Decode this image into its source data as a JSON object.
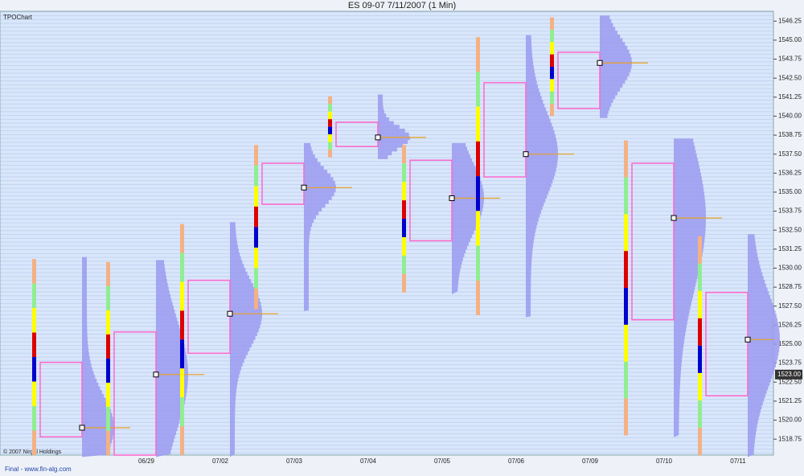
{
  "chart_data": {
    "type": "tpo",
    "title": "ES 09-07  7/11/2007  (1 Min)",
    "panel_label": "TPOChart",
    "copyright": "© 2007 Nirgal Holdings",
    "footer": "Final - www.fin-alg.com",
    "ylim": [
      1517.7,
      1546.9
    ],
    "yticks": [
      {
        "value": 1518.75,
        "label": "1518.75"
      },
      {
        "value": 1520,
        "label": "1520.00"
      },
      {
        "value": 1521.25,
        "label": "1521.25"
      },
      {
        "value": 1522.5,
        "label": "1522.50"
      },
      {
        "value": 1523.75,
        "label": "1523.75"
      },
      {
        "value": 1525,
        "label": "1525.00"
      },
      {
        "value": 1526.25,
        "label": "1526.25"
      },
      {
        "value": 1527.5,
        "label": "1527.50"
      },
      {
        "value": 1528.75,
        "label": "1528.75"
      },
      {
        "value": 1530,
        "label": "1530.00"
      },
      {
        "value": 1531.25,
        "label": "1531.25"
      },
      {
        "value": 1532.5,
        "label": "1532.50"
      },
      {
        "value": 1533.75,
        "label": "1533.75"
      },
      {
        "value": 1535,
        "label": "1535.00"
      },
      {
        "value": 1536.25,
        "label": "1536.25"
      },
      {
        "value": 1537.5,
        "label": "1537.50"
      },
      {
        "value": 1538.75,
        "label": "1538.75"
      },
      {
        "value": 1540,
        "label": "1540.00"
      },
      {
        "value": 1541.25,
        "label": "1541.25"
      },
      {
        "value": 1542.5,
        "label": "1542.50"
      },
      {
        "value": 1543.75,
        "label": "1543.75"
      },
      {
        "value": 1545,
        "label": "1545.00"
      },
      {
        "value": 1546.25,
        "label": "1546.25"
      }
    ],
    "current_price": {
      "value": 1523,
      "label": "1523.00"
    },
    "period_colors": [
      "#f4b183",
      "#90ee90",
      "#ffff00",
      "#dd0000",
      "#0000cc",
      "#ffff00",
      "#90ee90",
      "#f4b183"
    ],
    "profile_color": "#9a9af0",
    "value_area_color": "#ff66cc",
    "poc_line_color": "#e8a020",
    "categories": [
      null,
      "06/29",
      "07/02",
      "07/03",
      "07/04",
      "07/05",
      "07/06",
      "07/09",
      "07/10",
      "07/11"
    ],
    "low": [
      1517.7,
      1517.7,
      1517.7,
      1527.3,
      1537.3,
      1528.4,
      1526.9,
      1540.0,
      1519.0,
      1517.7
    ],
    "high": [
      1530.6,
      1530.4,
      1532.9,
      1538.1,
      1541.3,
      1538.1,
      1545.2,
      1546.5,
      1538.4,
      1532.1
    ],
    "poc": [
      1519.5,
      1523.0,
      1527.0,
      1535.3,
      1538.6,
      1534.6,
      1537.5,
      1543.5,
      1533.3,
      1525.3
    ],
    "va_low": [
      1518.9,
      1517.7,
      1524.4,
      1534.2,
      1538.0,
      1531.8,
      1536.0,
      1540.5,
      1526.6,
      1521.6
    ],
    "va_high": [
      1523.8,
      1525.8,
      1529.2,
      1536.9,
      1539.6,
      1537.1,
      1542.2,
      1544.2,
      1536.9,
      1528.4
    ]
  }
}
